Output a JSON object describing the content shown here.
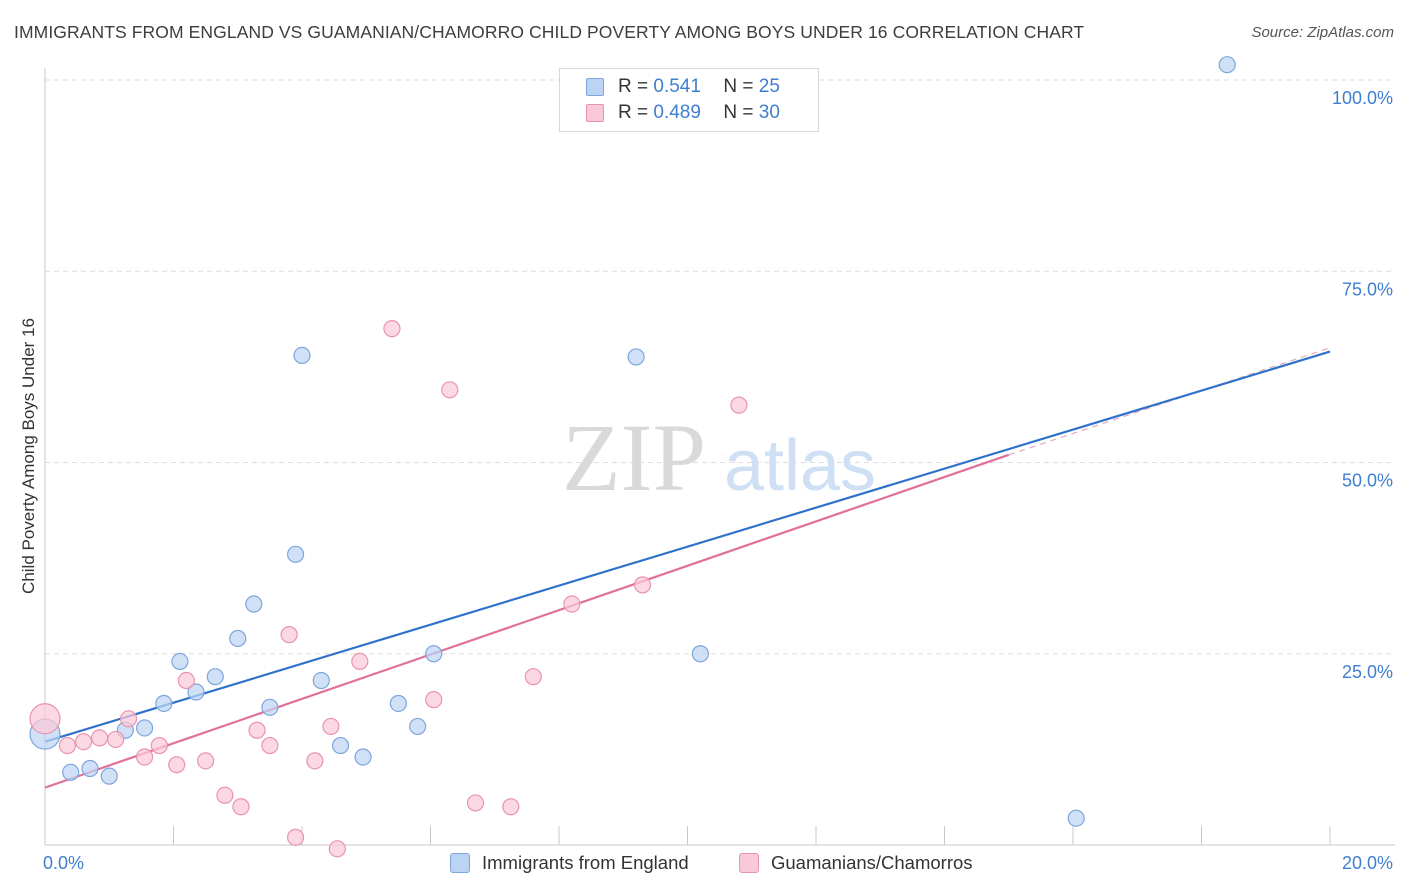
{
  "header": {
    "title": "IMMIGRANTS FROM ENGLAND VS GUAMANIAN/CHAMORRO CHILD POVERTY AMONG BOYS UNDER 16 CORRELATION CHART",
    "source": "Source: ZipAtlas.com"
  },
  "watermark": "ZIPatlas",
  "legend": {
    "rows": [
      {
        "r_label": "R =",
        "r_value": "0.541",
        "n_label": "N =",
        "n_value": "25"
      },
      {
        "r_label": "R =",
        "r_value": "0.489",
        "n_label": "N =",
        "n_value": "30"
      }
    ]
  },
  "colors": {
    "blue_fill": "#bcd4f4",
    "blue_stroke": "#7ea6dc",
    "blue_line": "#2f72cc",
    "pink_fill": "#f9c9d7",
    "pink_stroke": "#e993b0",
    "pink_line": "#e0709a",
    "axis_text": "#3f7fd0",
    "grid": "#dedede"
  },
  "chart_data": {
    "type": "scatter",
    "title": "IMMIGRANTS FROM ENGLAND VS GUAMANIAN/CHAMORRO CHILD POVERTY AMONG BOYS UNDER 16 CORRELATION CHART",
    "xlabel": "",
    "ylabel": "Child Poverty Among Boys Under 16",
    "xlim": [
      0,
      20
    ],
    "ylim": [
      0,
      100
    ],
    "x_ticks": [
      "0.0%",
      "20.0%"
    ],
    "y_ticks": [
      {
        "value": 100,
        "label": "100.0%"
      },
      {
        "value": 75,
        "label": "75.0%"
      },
      {
        "value": 50,
        "label": "50.0%"
      },
      {
        "value": 25,
        "label": "25.0%"
      }
    ],
    "grid": true,
    "series": [
      {
        "name": "Immigrants from England",
        "color": "blue",
        "points": [
          [
            0.0,
            14.5
          ],
          [
            0.4,
            9.5
          ],
          [
            0.7,
            10.0
          ],
          [
            1.0,
            9.0
          ],
          [
            1.25,
            15.0
          ],
          [
            1.55,
            15.3
          ],
          [
            1.85,
            18.5
          ],
          [
            2.1,
            24.0
          ],
          [
            2.35,
            20.0
          ],
          [
            2.65,
            22.0
          ],
          [
            3.0,
            27.0
          ],
          [
            3.25,
            31.5
          ],
          [
            3.5,
            18.0
          ],
          [
            3.9,
            38.0
          ],
          [
            4.0,
            64.0
          ],
          [
            4.3,
            21.5
          ],
          [
            4.6,
            13.0
          ],
          [
            4.95,
            11.5
          ],
          [
            5.5,
            18.5
          ],
          [
            5.8,
            15.5
          ],
          [
            6.05,
            25.0
          ],
          [
            9.2,
            63.8
          ],
          [
            10.2,
            25.0
          ],
          [
            16.05,
            3.5
          ],
          [
            18.4,
            102.0
          ]
        ],
        "trend": {
          "x": [
            0,
            20
          ],
          "y": [
            13.5,
            64.5
          ]
        }
      },
      {
        "name": "Guamanians/Chamorros",
        "color": "pink",
        "points": [
          [
            0.0,
            16.5
          ],
          [
            0.35,
            13.0
          ],
          [
            0.6,
            13.5
          ],
          [
            0.85,
            14.0
          ],
          [
            1.1,
            13.8
          ],
          [
            1.3,
            16.5
          ],
          [
            1.55,
            11.5
          ],
          [
            1.78,
            13.0
          ],
          [
            2.05,
            10.5
          ],
          [
            2.2,
            21.5
          ],
          [
            2.5,
            11.0
          ],
          [
            2.8,
            6.5
          ],
          [
            3.05,
            5.0
          ],
          [
            3.3,
            15.0
          ],
          [
            3.5,
            13.0
          ],
          [
            3.8,
            27.5
          ],
          [
            3.9,
            1.0
          ],
          [
            4.2,
            11.0
          ],
          [
            4.45,
            15.5
          ],
          [
            4.55,
            -0.5
          ],
          [
            4.9,
            24.0
          ],
          [
            5.4,
            67.5
          ],
          [
            6.05,
            19.0
          ],
          [
            6.3,
            59.5
          ],
          [
            6.7,
            5.5
          ],
          [
            7.25,
            5.0
          ],
          [
            7.6,
            22.0
          ],
          [
            8.2,
            31.5
          ],
          [
            9.3,
            34.0
          ],
          [
            10.8,
            57.5
          ]
        ],
        "trend": {
          "x": [
            0,
            15
          ],
          "y": [
            7.5,
            51.0
          ]
        },
        "trend_dashed_extension": {
          "x": [
            15,
            20
          ],
          "y": [
            51.0,
            65.0
          ]
        }
      }
    ]
  },
  "bottom_legend": {
    "items": [
      {
        "label": "Immigrants from England"
      },
      {
        "label": "Guamanians/Chamorros"
      }
    ]
  }
}
